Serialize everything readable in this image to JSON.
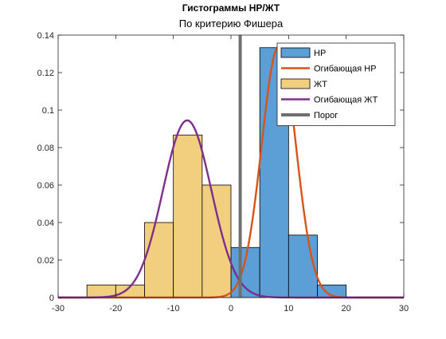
{
  "chart_data": {
    "type": "bar",
    "title": "Гистограммы НР/ЖТ",
    "subtitle": "По критерию Фишера",
    "xlabel": "",
    "ylabel": "",
    "xlim": [
      -30,
      30
    ],
    "ylim": [
      0,
      0.14
    ],
    "xticks": [
      -30,
      -20,
      -10,
      0,
      10,
      20,
      30
    ],
    "yticks": [
      0,
      0.02,
      0.04,
      0.06,
      0.08,
      0.1,
      0.12,
      0.14
    ],
    "xtick_labels": [
      "-30",
      "-20",
      "-10",
      "0",
      "10",
      "20",
      "30"
    ],
    "ytick_labels": [
      "0",
      "0.02",
      "0.04",
      "0.06",
      "0.08",
      "0.1",
      "0.12",
      "0.14"
    ],
    "grid": false,
    "legend_position": "top-right",
    "series": [
      {
        "name": "НР",
        "kind": "histogram",
        "color": "#5b9fd6",
        "bin_edges": [
          0,
          5,
          10,
          15,
          20
        ],
        "values": [
          0.0267,
          0.1333,
          0.0333,
          0.0067
        ]
      },
      {
        "name": "Огибающая НР",
        "kind": "normal-curve",
        "color": "#d95319",
        "mean": 8.3,
        "std": 2.98,
        "peak": 0.134
      },
      {
        "name": "ЖТ",
        "kind": "histogram",
        "color": "#f2cf7e",
        "bin_edges": [
          -25,
          -20,
          -15,
          -10,
          -5,
          0
        ],
        "values": [
          0.0067,
          0.0067,
          0.04,
          0.0867,
          0.06
        ]
      },
      {
        "name": "Огибающая ЖТ",
        "kind": "normal-curve",
        "color": "#7e2f8e",
        "mean": -7.6,
        "std": 4.2,
        "peak": 0.0945
      },
      {
        "name": "Порог",
        "kind": "vertical-line",
        "color": "#707070",
        "x": 1.6
      }
    ]
  }
}
